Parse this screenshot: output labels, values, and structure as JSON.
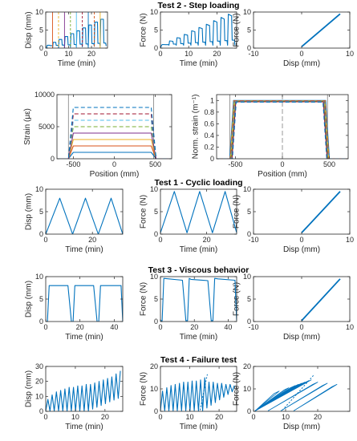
{
  "colors": {
    "blue": "#0072BD",
    "orange": "#D95319",
    "yellow": "#EDB120",
    "purple": "#7E2F8E",
    "green": "#77AC30",
    "cyan": "#4DBEEE",
    "red": "#A2142F",
    "gray": "#7f7f7f",
    "axis": "#262626"
  },
  "chart_data": [
    {
      "id": "t2-disp",
      "type": "line",
      "title": "",
      "xlabel": "Time (min)",
      "ylabel": "Disp (mm)",
      "xlim": [
        0,
        27
      ],
      "ylim": [
        0,
        10
      ],
      "xticks": [
        0,
        10,
        20
      ],
      "yticks": [
        0,
        5,
        10
      ],
      "step_levels_mm": [
        0.8,
        1.6,
        2.4,
        3.2,
        4.0,
        4.8,
        5.6,
        6.4,
        7.2,
        8.0
      ],
      "markers_min": [
        3,
        5.6,
        8.2,
        10.8,
        13.4,
        16,
        18.6,
        21.2,
        23.8
      ]
    },
    {
      "id": "t2-force",
      "type": "line",
      "title": "Test 2 - Step loading",
      "xlabel": "Time (min)",
      "ylabel": "Force (N)",
      "xlim": [
        0,
        27
      ],
      "ylim": [
        0,
        10
      ],
      "xticks": [
        0,
        10,
        20
      ],
      "yticks": [
        0,
        5,
        10
      ],
      "step_levels_N": [
        1.0,
        2.0,
        2.9,
        3.8,
        4.8,
        5.7,
        6.6,
        7.6,
        8.5,
        9.4
      ]
    },
    {
      "id": "t2-fd",
      "type": "line",
      "title": "",
      "xlabel": "Disp (mm)",
      "ylabel": "Force (N)",
      "xlim": [
        -10,
        10
      ],
      "ylim": [
        0,
        10
      ],
      "xticks": [
        -10,
        0,
        10
      ],
      "yticks": [
        0,
        5,
        10
      ],
      "x": [
        0,
        8
      ],
      "y": [
        0.4,
        9.5
      ]
    },
    {
      "id": "strain",
      "type": "line",
      "title": "",
      "xlabel": "Position (mm)",
      "ylabel": "Strain (με)",
      "xlim": [
        -700,
        700
      ],
      "ylim": [
        0,
        10000
      ],
      "xticks": [
        -500,
        0,
        500
      ],
      "yticks": [
        0,
        5000,
        10000
      ],
      "ytick_labels": [
        "0",
        "5000",
        "10000"
      ],
      "plateaus": [
        1000,
        2000,
        3000,
        4000,
        5000,
        6000,
        7000,
        8000
      ],
      "edges_mm": [
        -560,
        480
      ]
    },
    {
      "id": "norm",
      "type": "line",
      "title": "",
      "xlabel": "Position (mm)",
      "ylabel": "Norm. strain (m⁻¹)",
      "xlim": [
        -700,
        700
      ],
      "ylim": [
        0,
        1.1
      ],
      "xticks": [
        -500,
        0,
        500
      ],
      "yticks": [
        0,
        0.2,
        0.4,
        0.6,
        0.8,
        1.0
      ],
      "ytick_labels": [
        "0",
        "0.2",
        "0.4",
        "0.6",
        "0.8",
        "1"
      ]
    },
    {
      "id": "t1-disp",
      "type": "line",
      "title": "",
      "xlabel": "Time (min)",
      "ylabel": "Disp (mm)",
      "xlim": [
        0,
        33
      ],
      "ylim": [
        0,
        10
      ],
      "xticks": [
        0,
        20
      ],
      "yticks": [
        0,
        5,
        10
      ],
      "x": [
        0,
        6,
        11.5,
        17,
        22.5,
        28,
        33
      ],
      "y": [
        0,
        8,
        0,
        8,
        0,
        8,
        0
      ]
    },
    {
      "id": "t1-force",
      "type": "line",
      "title": "Test 1 - Cyclic loading",
      "xlabel": "Time (min)",
      "ylabel": "Force (N)",
      "xlim": [
        0,
        33
      ],
      "ylim": [
        0,
        10
      ],
      "xticks": [
        0,
        20
      ],
      "yticks": [
        0,
        5,
        10
      ],
      "x": [
        0,
        6,
        11.5,
        17,
        22.5,
        28,
        33
      ],
      "y": [
        0.3,
        9.5,
        0.3,
        9.5,
        0.3,
        9.5,
        0.3
      ]
    },
    {
      "id": "t1-fd",
      "type": "line",
      "title": "",
      "xlabel": "Disp (mm)",
      "ylabel": "Force (N)",
      "xlim": [
        -10,
        10
      ],
      "ylim": [
        0,
        10
      ],
      "xticks": [
        -10,
        0,
        10
      ],
      "yticks": [
        0,
        5,
        10
      ],
      "x": [
        0,
        8
      ],
      "y": [
        0.3,
        9.5
      ]
    },
    {
      "id": "t3-disp",
      "type": "line",
      "title": "",
      "xlabel": "Time (min)",
      "ylabel": "Disp (mm)",
      "xlim": [
        0,
        45
      ],
      "ylim": [
        0,
        10
      ],
      "xticks": [
        0,
        20,
        40
      ],
      "yticks": [
        0,
        5,
        10
      ],
      "x": [
        0,
        1,
        2,
        13,
        15,
        16,
        17,
        18,
        28,
        30,
        31,
        32,
        34,
        44,
        45
      ],
      "y": [
        0,
        0,
        8,
        8,
        0,
        0,
        8,
        8,
        8,
        0,
        0,
        8,
        8,
        8,
        0
      ]
    },
    {
      "id": "t3-force",
      "type": "line",
      "title": "Test 3 - Viscous behavior",
      "xlabel": "Time (min)",
      "ylabel": "Force (N)",
      "xlim": [
        0,
        45
      ],
      "ylim": [
        0,
        10
      ],
      "xticks": [
        0,
        20,
        40
      ],
      "yticks": [
        0,
        5,
        10
      ],
      "x": [
        0,
        1,
        2,
        13,
        15,
        16,
        17,
        18,
        28,
        30,
        31,
        32,
        34,
        44,
        45
      ],
      "y": [
        0.2,
        0.2,
        9.6,
        9.2,
        0.2,
        0.2,
        9.6,
        9.4,
        9.1,
        0.2,
        0.2,
        9.6,
        9.5,
        9.2,
        0.2
      ]
    },
    {
      "id": "t3-fd",
      "type": "line",
      "title": "",
      "xlabel": "Disp (mm)",
      "ylabel": "Force (N)",
      "xlim": [
        -10,
        10
      ],
      "ylim": [
        0,
        10
      ],
      "xticks": [
        -10,
        0,
        10
      ],
      "yticks": [
        0,
        5,
        10
      ],
      "x": [
        0,
        8
      ],
      "y": [
        0.2,
        9.5
      ]
    },
    {
      "id": "t4-disp",
      "type": "line",
      "title": "",
      "xlabel": "Time (min)",
      "ylabel": "Disp (mm)",
      "xlim": [
        0,
        26
      ],
      "ylim": [
        0,
        30
      ],
      "xticks": [
        0,
        10,
        20
      ],
      "yticks": [
        0,
        10,
        20,
        30
      ],
      "cycle_min": 1.6,
      "peaks_mm": [
        8,
        11,
        13,
        14,
        15,
        16,
        16,
        17,
        17,
        18,
        18,
        19,
        20,
        21,
        22,
        23,
        25,
        27
      ]
    },
    {
      "id": "t4-force",
      "type": "line",
      "title": "Test 4 - Failure test",
      "xlabel": "Time (min)",
      "ylabel": "Force (N)",
      "xlim": [
        0,
        26
      ],
      "ylim": [
        0,
        20
      ],
      "xticks": [
        0,
        10,
        20
      ],
      "yticks": [
        0,
        10,
        20
      ],
      "cycle_min": 1.6,
      "peaks_N": [
        9,
        10.5,
        11.5,
        12,
        12.5,
        13,
        13,
        13.5,
        13.5,
        14,
        15,
        13,
        13,
        12.5,
        12.5,
        12,
        12,
        11.5
      ]
    },
    {
      "id": "t4-fd",
      "type": "line",
      "title": "",
      "xlabel": "Disp (mm)",
      "ylabel": "Force (N)",
      "xlim": [
        0,
        30
      ],
      "ylim": [
        0,
        20
      ],
      "xticks": [
        0,
        10,
        20
      ],
      "yticks": [
        0,
        10,
        20
      ]
    }
  ]
}
